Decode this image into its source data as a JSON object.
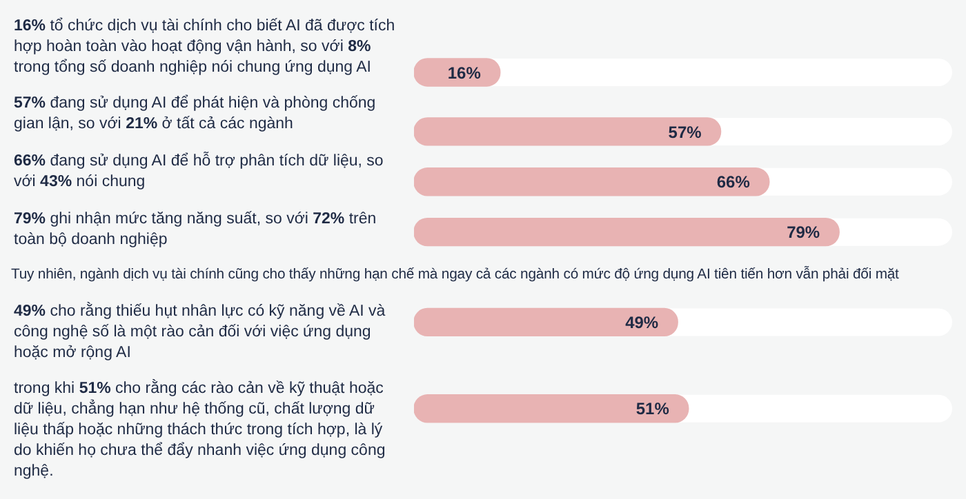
{
  "chart_data": {
    "type": "bar",
    "orientation": "horizontal",
    "categories": [
      "16% tổ chức dịch vụ tài chính cho biết AI đã được tích hợp hoàn toàn vào hoạt động vận hành, so với 8% trong tổng số doanh nghiệp nói chung ứng dụng AI",
      "57% đang sử dụng AI để phát hiện và phòng chống gian lận, so với 21% ở tất cả các ngành",
      "66% đang sử dụng AI để hỗ trợ phân tích dữ liệu, so với 43% nói chung",
      "79% ghi nhận mức tăng năng suất, so với 72% trên toàn bộ doanh nghiệp",
      "49% cho rằng thiếu hụt nhân lực có kỹ năng về AI và công nghệ số là một rào cản đối với việc ứng dụng hoặc mở rộng AI",
      "trong khi 51% cho rằng các rào cản về kỹ thuật hoặc dữ liệu, chẳng hạn như hệ thống cũ, chất lượng dữ liệu thấp hoặc những thách thức trong tích hợp, là lý do khiến họ chưa thể đẩy nhanh việc ứng dụng công nghệ."
    ],
    "values": [
      16,
      57,
      66,
      79,
      49,
      51
    ],
    "value_labels": [
      "16%",
      "57%",
      "66%",
      "79%",
      "49%",
      "51%"
    ],
    "color": "#e8b3b3",
    "xlim": [
      0,
      100
    ],
    "tick_labels": false,
    "grid": false,
    "legend": false,
    "annotations": [
      "Tuy nhiên, ngành dịch vụ tài chính cũng cho thấy những hạn chế mà ngay cả các ngành có mức độ ứng dụng AI tiên tiến hơn vẫn phải đối mặt"
    ]
  }
}
